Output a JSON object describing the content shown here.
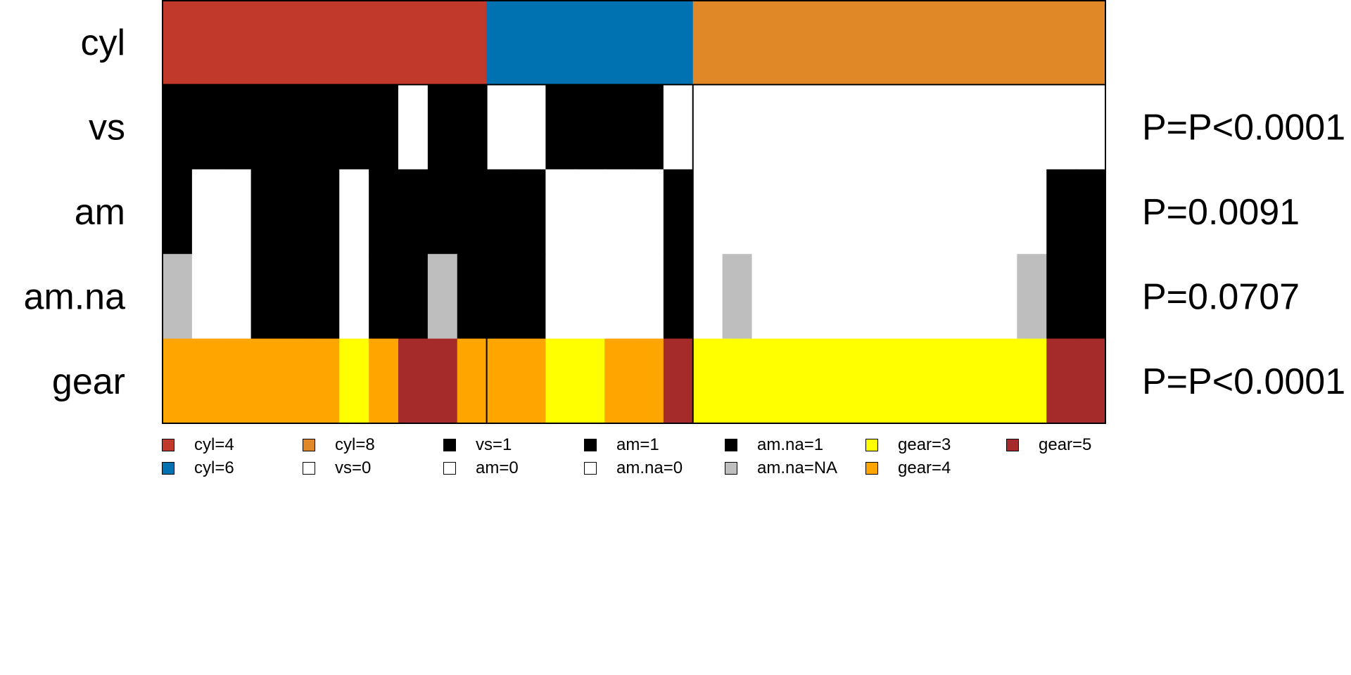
{
  "chart_data": {
    "type": "heatmap",
    "n_columns": 32,
    "rows": [
      {
        "name": "cyl",
        "p_value": "",
        "values": [
          "4",
          "4",
          "4",
          "4",
          "4",
          "4",
          "4",
          "4",
          "4",
          "4",
          "4",
          "6",
          "6",
          "6",
          "6",
          "6",
          "6",
          "6",
          "8",
          "8",
          "8",
          "8",
          "8",
          "8",
          "8",
          "8",
          "8",
          "8",
          "8",
          "8",
          "8",
          "8"
        ]
      },
      {
        "name": "vs",
        "p_value": "P=P<0.0001",
        "values": [
          "1",
          "1",
          "1",
          "1",
          "1",
          "1",
          "1",
          "1",
          "0",
          "1",
          "1",
          "0",
          "0",
          "1",
          "1",
          "1",
          "1",
          "0",
          "0",
          "0",
          "0",
          "0",
          "0",
          "0",
          "0",
          "0",
          "0",
          "0",
          "0",
          "0",
          "0",
          "0"
        ]
      },
      {
        "name": "am",
        "p_value": "P=0.0091",
        "values": [
          "1",
          "0",
          "0",
          "1",
          "1",
          "1",
          "0",
          "1",
          "1",
          "1",
          "1",
          "1",
          "1",
          "0",
          "0",
          "0",
          "0",
          "1",
          "0",
          "0",
          "0",
          "0",
          "0",
          "0",
          "0",
          "0",
          "0",
          "0",
          "0",
          "0",
          "1",
          "1"
        ]
      },
      {
        "name": "am.na",
        "p_value": "P=0.0707",
        "values": [
          "NA",
          "0",
          "0",
          "1",
          "1",
          "1",
          "0",
          "1",
          "1",
          "NA",
          "1",
          "1",
          "1",
          "0",
          "0",
          "0",
          "0",
          "1",
          "0",
          "NA",
          "0",
          "0",
          "0",
          "0",
          "0",
          "0",
          "0",
          "0",
          "0",
          "NA",
          "1",
          "1"
        ]
      },
      {
        "name": "gear",
        "p_value": "P=P<0.0001",
        "values": [
          "4",
          "4",
          "4",
          "4",
          "4",
          "4",
          "3",
          "4",
          "5",
          "5",
          "4",
          "4",
          "4",
          "3",
          "3",
          "4",
          "4",
          "5",
          "3",
          "3",
          "3",
          "3",
          "3",
          "3",
          "3",
          "3",
          "3",
          "3",
          "3",
          "3",
          "5",
          "5"
        ]
      }
    ],
    "group_boundaries_after_column": [
      11,
      18
    ],
    "colors": {
      "cyl": {
        "4": "#C0392B",
        "6": "#0072B2",
        "8": "#E08828"
      },
      "vs": {
        "1": "#000000",
        "0": "#FFFFFF"
      },
      "am": {
        "1": "#000000",
        "0": "#FFFFFF"
      },
      "am.na": {
        "1": "#000000",
        "0": "#FFFFFF",
        "NA": "#BEBEBE"
      },
      "gear": {
        "3": "#FFFF00",
        "4": "#FFA500",
        "5": "#A52A2A"
      }
    },
    "legend": [
      {
        "label": "cyl=4",
        "color": "#C0392B"
      },
      {
        "label": "cyl=6",
        "color": "#0072B2"
      },
      {
        "label": "cyl=8",
        "color": "#E08828"
      },
      {
        "label": "vs=0",
        "color": "#FFFFFF"
      },
      {
        "label": "vs=1",
        "color": "#000000"
      },
      {
        "label": "am=0",
        "color": "#FFFFFF"
      },
      {
        "label": "am=1",
        "color": "#000000"
      },
      {
        "label": "am.na=0",
        "color": "#FFFFFF"
      },
      {
        "label": "am.na=1",
        "color": "#000000"
      },
      {
        "label": "am.na=NA",
        "color": "#BEBEBE"
      },
      {
        "label": "gear=3",
        "color": "#FFFF00"
      },
      {
        "label": "gear=4",
        "color": "#FFA500"
      },
      {
        "label": "gear=5",
        "color": "#A52A2A"
      }
    ],
    "legend_layout": "two rows below heatmap, column-major"
  }
}
